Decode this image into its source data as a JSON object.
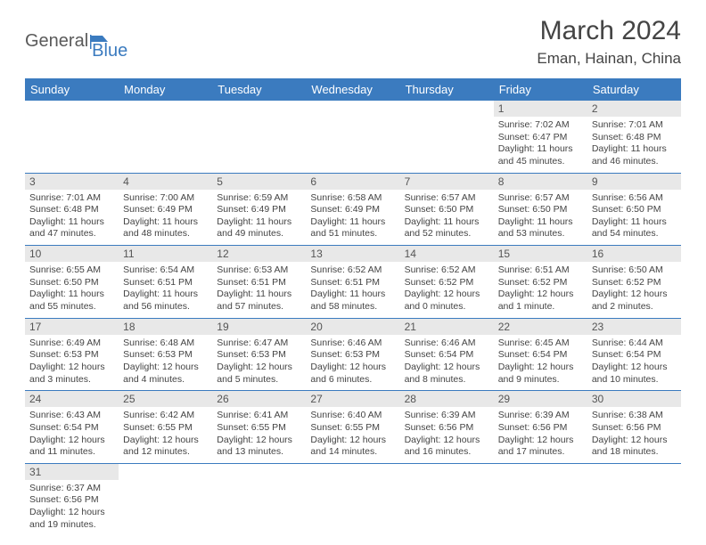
{
  "logo": {
    "part1": "General",
    "part2": "Blue"
  },
  "title": "March 2024",
  "location": "Eman, Hainan, China",
  "colors": {
    "header_bg": "#3b7bbf",
    "header_text": "#ffffff",
    "daynum_bg": "#e8e8e8",
    "divider": "#3b7bbf",
    "logo_gray": "#5a5a5a",
    "logo_blue": "#3b7bbf",
    "text": "#444444"
  },
  "day_headers": [
    "Sunday",
    "Monday",
    "Tuesday",
    "Wednesday",
    "Thursday",
    "Friday",
    "Saturday"
  ],
  "weeks": [
    [
      null,
      null,
      null,
      null,
      null,
      {
        "d": "1",
        "sr": "Sunrise: 7:02 AM",
        "ss": "Sunset: 6:47 PM",
        "dl": "Daylight: 11 hours and 45 minutes."
      },
      {
        "d": "2",
        "sr": "Sunrise: 7:01 AM",
        "ss": "Sunset: 6:48 PM",
        "dl": "Daylight: 11 hours and 46 minutes."
      }
    ],
    [
      {
        "d": "3",
        "sr": "Sunrise: 7:01 AM",
        "ss": "Sunset: 6:48 PM",
        "dl": "Daylight: 11 hours and 47 minutes."
      },
      {
        "d": "4",
        "sr": "Sunrise: 7:00 AM",
        "ss": "Sunset: 6:49 PM",
        "dl": "Daylight: 11 hours and 48 minutes."
      },
      {
        "d": "5",
        "sr": "Sunrise: 6:59 AM",
        "ss": "Sunset: 6:49 PM",
        "dl": "Daylight: 11 hours and 49 minutes."
      },
      {
        "d": "6",
        "sr": "Sunrise: 6:58 AM",
        "ss": "Sunset: 6:49 PM",
        "dl": "Daylight: 11 hours and 51 minutes."
      },
      {
        "d": "7",
        "sr": "Sunrise: 6:57 AM",
        "ss": "Sunset: 6:50 PM",
        "dl": "Daylight: 11 hours and 52 minutes."
      },
      {
        "d": "8",
        "sr": "Sunrise: 6:57 AM",
        "ss": "Sunset: 6:50 PM",
        "dl": "Daylight: 11 hours and 53 minutes."
      },
      {
        "d": "9",
        "sr": "Sunrise: 6:56 AM",
        "ss": "Sunset: 6:50 PM",
        "dl": "Daylight: 11 hours and 54 minutes."
      }
    ],
    [
      {
        "d": "10",
        "sr": "Sunrise: 6:55 AM",
        "ss": "Sunset: 6:50 PM",
        "dl": "Daylight: 11 hours and 55 minutes."
      },
      {
        "d": "11",
        "sr": "Sunrise: 6:54 AM",
        "ss": "Sunset: 6:51 PM",
        "dl": "Daylight: 11 hours and 56 minutes."
      },
      {
        "d": "12",
        "sr": "Sunrise: 6:53 AM",
        "ss": "Sunset: 6:51 PM",
        "dl": "Daylight: 11 hours and 57 minutes."
      },
      {
        "d": "13",
        "sr": "Sunrise: 6:52 AM",
        "ss": "Sunset: 6:51 PM",
        "dl": "Daylight: 11 hours and 58 minutes."
      },
      {
        "d": "14",
        "sr": "Sunrise: 6:52 AM",
        "ss": "Sunset: 6:52 PM",
        "dl": "Daylight: 12 hours and 0 minutes."
      },
      {
        "d": "15",
        "sr": "Sunrise: 6:51 AM",
        "ss": "Sunset: 6:52 PM",
        "dl": "Daylight: 12 hours and 1 minute."
      },
      {
        "d": "16",
        "sr": "Sunrise: 6:50 AM",
        "ss": "Sunset: 6:52 PM",
        "dl": "Daylight: 12 hours and 2 minutes."
      }
    ],
    [
      {
        "d": "17",
        "sr": "Sunrise: 6:49 AM",
        "ss": "Sunset: 6:53 PM",
        "dl": "Daylight: 12 hours and 3 minutes."
      },
      {
        "d": "18",
        "sr": "Sunrise: 6:48 AM",
        "ss": "Sunset: 6:53 PM",
        "dl": "Daylight: 12 hours and 4 minutes."
      },
      {
        "d": "19",
        "sr": "Sunrise: 6:47 AM",
        "ss": "Sunset: 6:53 PM",
        "dl": "Daylight: 12 hours and 5 minutes."
      },
      {
        "d": "20",
        "sr": "Sunrise: 6:46 AM",
        "ss": "Sunset: 6:53 PM",
        "dl": "Daylight: 12 hours and 6 minutes."
      },
      {
        "d": "21",
        "sr": "Sunrise: 6:46 AM",
        "ss": "Sunset: 6:54 PM",
        "dl": "Daylight: 12 hours and 8 minutes."
      },
      {
        "d": "22",
        "sr": "Sunrise: 6:45 AM",
        "ss": "Sunset: 6:54 PM",
        "dl": "Daylight: 12 hours and 9 minutes."
      },
      {
        "d": "23",
        "sr": "Sunrise: 6:44 AM",
        "ss": "Sunset: 6:54 PM",
        "dl": "Daylight: 12 hours and 10 minutes."
      }
    ],
    [
      {
        "d": "24",
        "sr": "Sunrise: 6:43 AM",
        "ss": "Sunset: 6:54 PM",
        "dl": "Daylight: 12 hours and 11 minutes."
      },
      {
        "d": "25",
        "sr": "Sunrise: 6:42 AM",
        "ss": "Sunset: 6:55 PM",
        "dl": "Daylight: 12 hours and 12 minutes."
      },
      {
        "d": "26",
        "sr": "Sunrise: 6:41 AM",
        "ss": "Sunset: 6:55 PM",
        "dl": "Daylight: 12 hours and 13 minutes."
      },
      {
        "d": "27",
        "sr": "Sunrise: 6:40 AM",
        "ss": "Sunset: 6:55 PM",
        "dl": "Daylight: 12 hours and 14 minutes."
      },
      {
        "d": "28",
        "sr": "Sunrise: 6:39 AM",
        "ss": "Sunset: 6:56 PM",
        "dl": "Daylight: 12 hours and 16 minutes."
      },
      {
        "d": "29",
        "sr": "Sunrise: 6:39 AM",
        "ss": "Sunset: 6:56 PM",
        "dl": "Daylight: 12 hours and 17 minutes."
      },
      {
        "d": "30",
        "sr": "Sunrise: 6:38 AM",
        "ss": "Sunset: 6:56 PM",
        "dl": "Daylight: 12 hours and 18 minutes."
      }
    ],
    [
      {
        "d": "31",
        "sr": "Sunrise: 6:37 AM",
        "ss": "Sunset: 6:56 PM",
        "dl": "Daylight: 12 hours and 19 minutes."
      },
      null,
      null,
      null,
      null,
      null,
      null
    ]
  ]
}
